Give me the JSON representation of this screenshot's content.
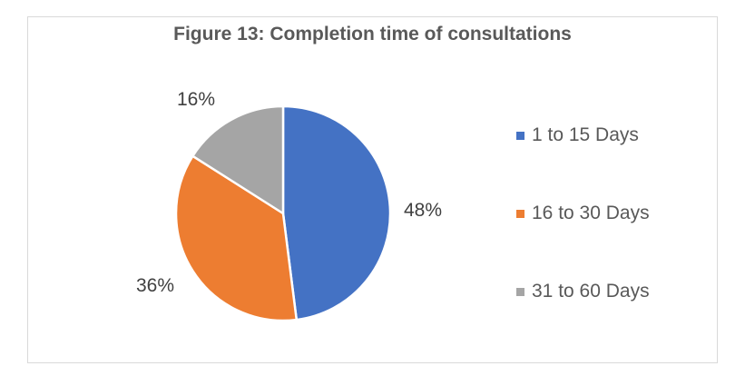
{
  "chart_data": {
    "type": "pie",
    "title": "Figure 13: Completion time of consultations",
    "categories": [
      "1 to 15 Days",
      "16 to 30 Days",
      "31 to 60 Days"
    ],
    "values": [
      48,
      36,
      16
    ],
    "labels": [
      "48%",
      "36%",
      "16%"
    ],
    "colors": [
      "#4472c4",
      "#ed7d31",
      "#a5a5a5"
    ],
    "legend_position": "right",
    "start_angle_deg": 0,
    "direction": "clockwise"
  },
  "title": "Figure 13: Completion time of consultations",
  "legend": [
    {
      "label": "1 to 15 Days",
      "color": "#4472c4"
    },
    {
      "label": "16 to 30 Days",
      "color": "#ed7d31"
    },
    {
      "label": "31 to 60 Days",
      "color": "#a5a5a5"
    }
  ],
  "data_labels": {
    "s0": "48%",
    "s1": "36%",
    "s2": "16%"
  }
}
